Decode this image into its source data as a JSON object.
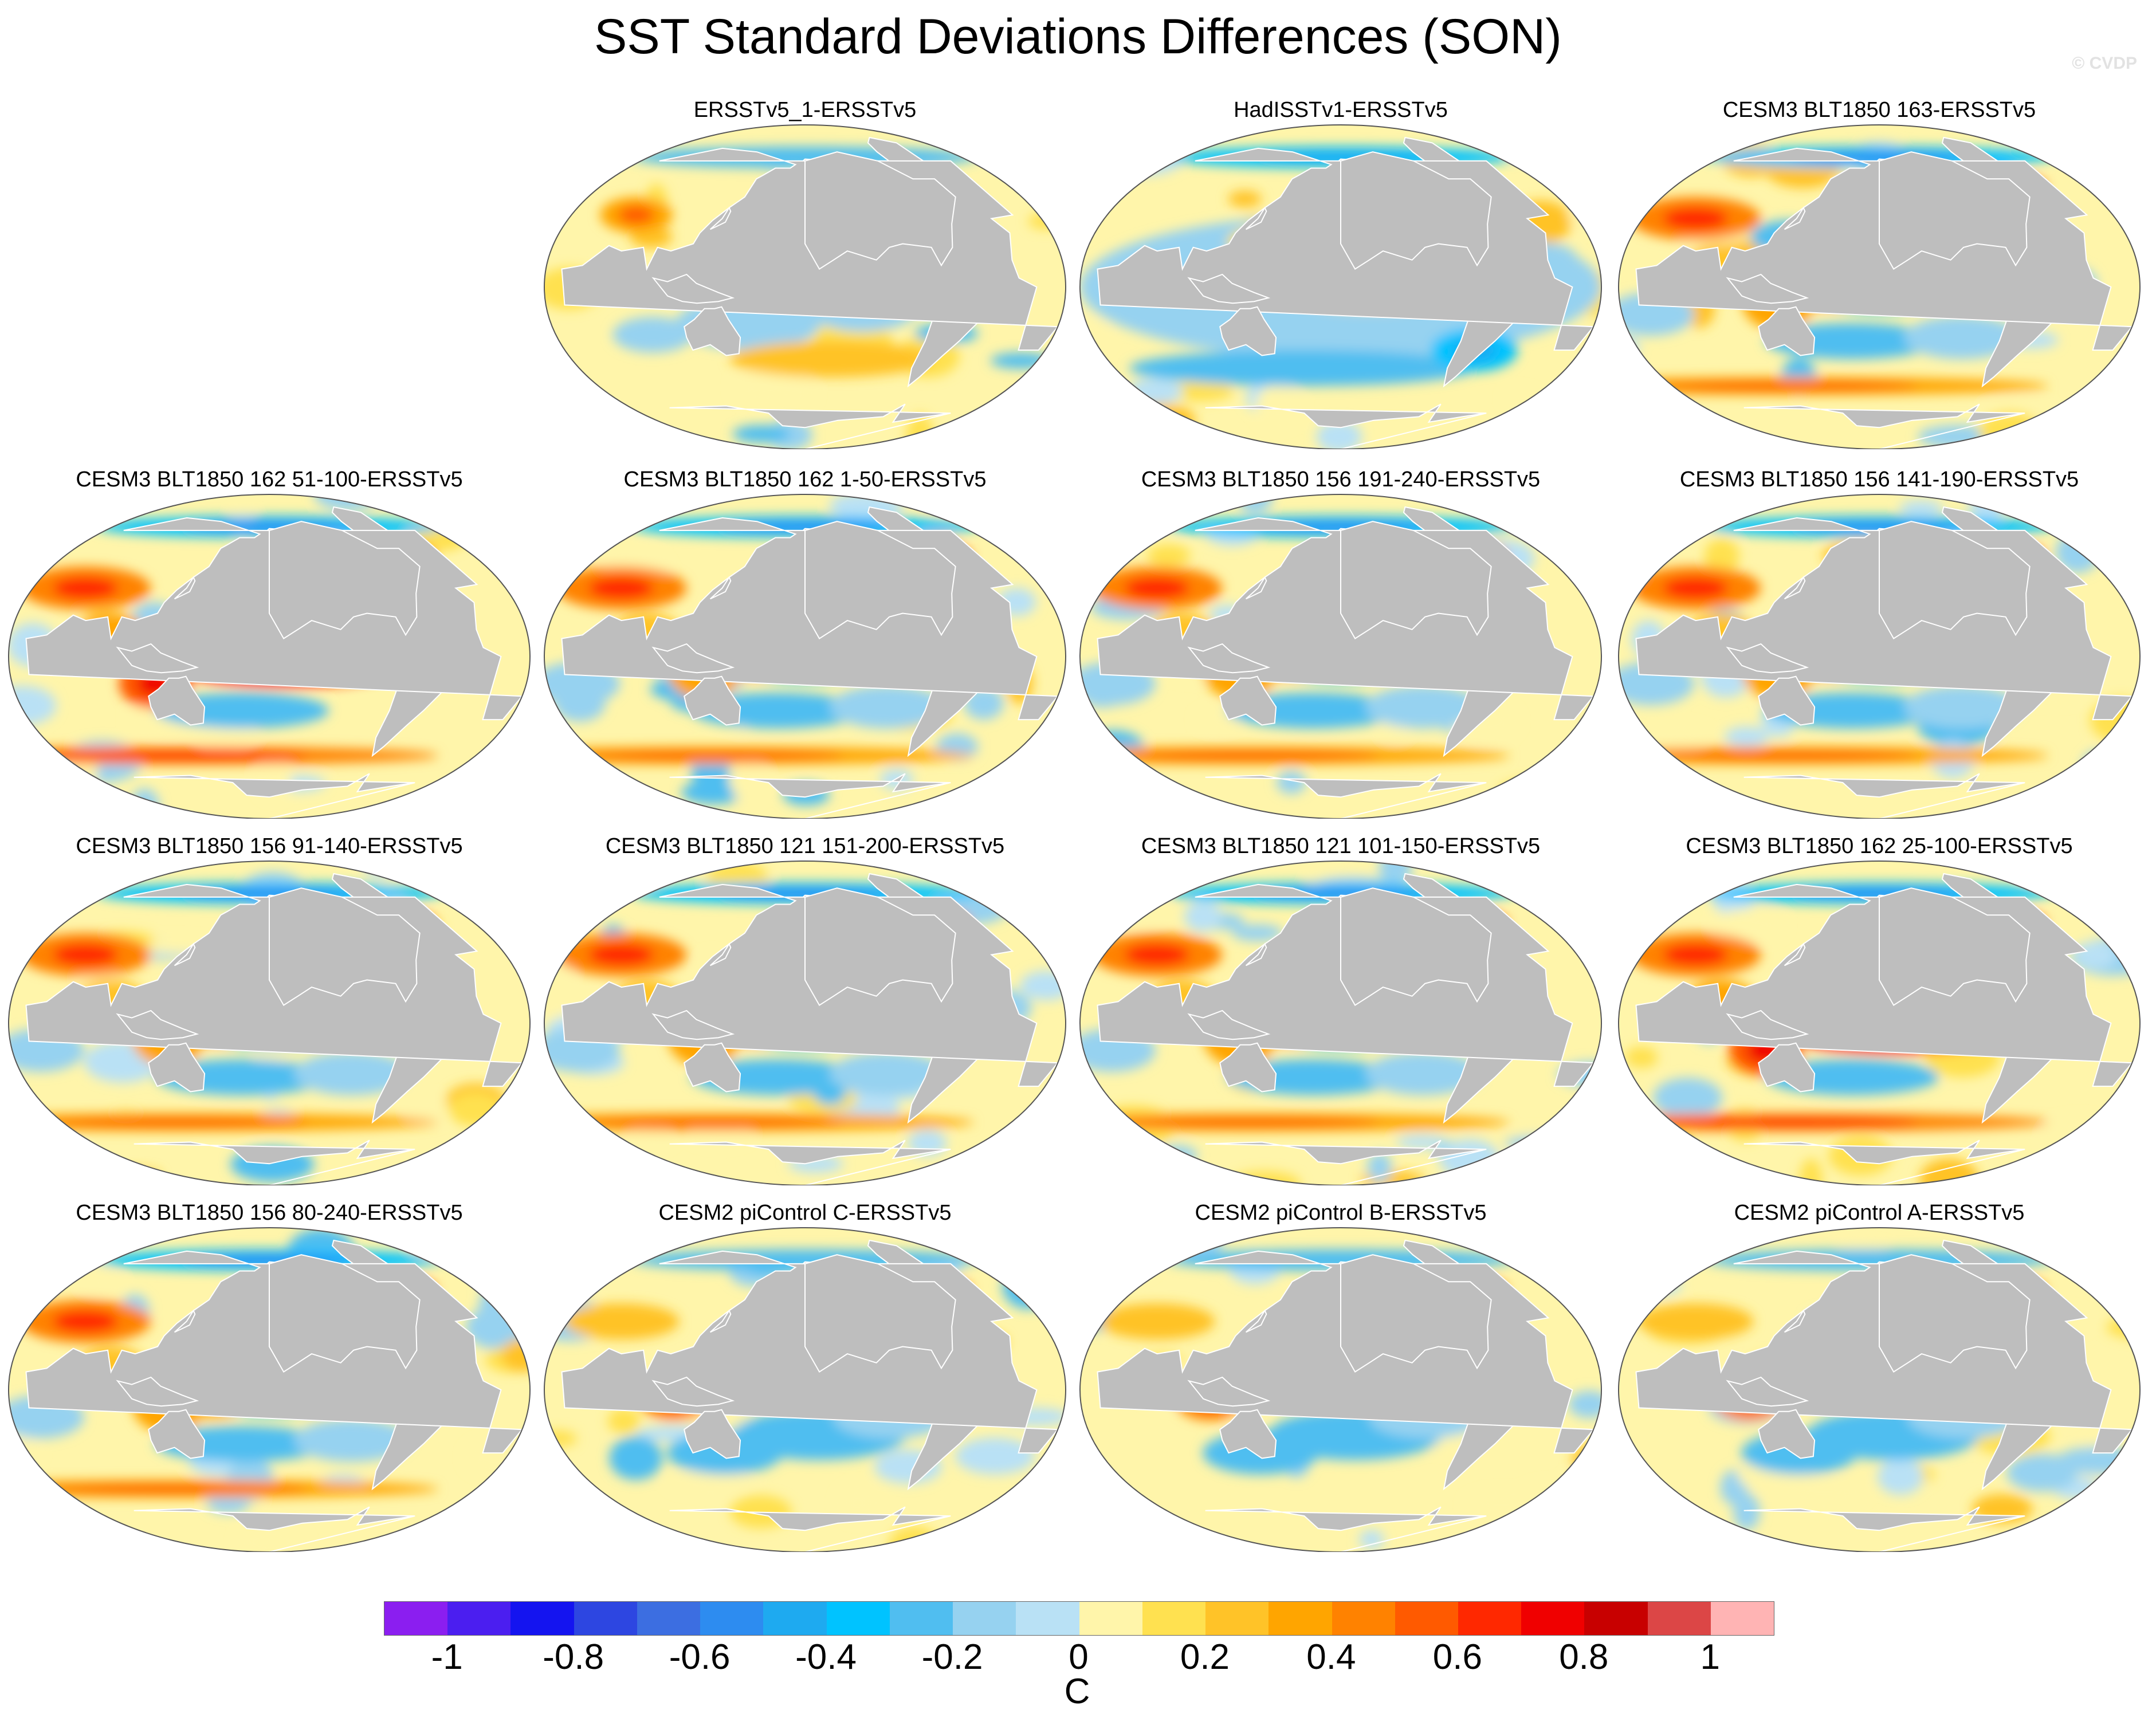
{
  "figure": {
    "title": "SST Standard Deviations Differences (SON)",
    "credit": "© CVDP"
  },
  "panels": [
    {
      "title": "ERSSTv5_1-ERSSTv5",
      "pattern": "obs_ersst"
    },
    {
      "title": "HadISSTv1-ERSSTv5",
      "pattern": "obs_hadisst"
    },
    {
      "title": "CESM3 BLT1850 163-ERSSTv5",
      "pattern": "model"
    },
    {
      "title": "CESM3 BLT1850 162 51-100-ERSSTv5",
      "pattern": "model_strong"
    },
    {
      "title": "CESM3 BLT1850 162 1-50-ERSSTv5",
      "pattern": "model"
    },
    {
      "title": "CESM3 BLT1850 156 191-240-ERSSTv5",
      "pattern": "model"
    },
    {
      "title": "CESM3 BLT1850 156 141-190-ERSSTv5",
      "pattern": "model"
    },
    {
      "title": "CESM3 BLT1850 156 91-140-ERSSTv5",
      "pattern": "model"
    },
    {
      "title": "CESM3 BLT1850 121 151-200-ERSSTv5",
      "pattern": "model"
    },
    {
      "title": "CESM3 BLT1850 121 101-150-ERSSTv5",
      "pattern": "model"
    },
    {
      "title": "CESM3 BLT1850 162 25-100-ERSSTv5",
      "pattern": "model_strong"
    },
    {
      "title": "CESM3 BLT1850 156 80-240-ERSSTv5",
      "pattern": "model"
    },
    {
      "title": "CESM2 piControl C-ERSSTv5",
      "pattern": "cesm2"
    },
    {
      "title": "CESM2 piControl B-ERSSTv5",
      "pattern": "cesm2"
    },
    {
      "title": "CESM2 piControl A-ERSSTv5",
      "pattern": "cesm2"
    }
  ],
  "colorbar": {
    "units": "C",
    "colors": [
      "#8b1ef0",
      "#4b1ef0",
      "#1414f0",
      "#2d46e1",
      "#3c6ee1",
      "#2d8cf0",
      "#1eaaf0",
      "#00c3ff",
      "#50bef0",
      "#96d2f0",
      "#b9e1f5",
      "#fff5aa",
      "#ffe150",
      "#ffc328",
      "#ffa500",
      "#ff8200",
      "#ff5a00",
      "#ff2800",
      "#f00000",
      "#c80000",
      "#dc4646",
      "#ffb4b4"
    ],
    "tick_labels": [
      "-1",
      "-0.8",
      "-0.6",
      "-0.4",
      "-0.2",
      "0",
      "0.2",
      "0.4",
      "0.6",
      "0.8",
      "1"
    ],
    "tick_values": [
      -1,
      -0.8,
      -0.6,
      -0.4,
      -0.2,
      0,
      0.2,
      0.4,
      0.6,
      0.8,
      1
    ]
  }
}
